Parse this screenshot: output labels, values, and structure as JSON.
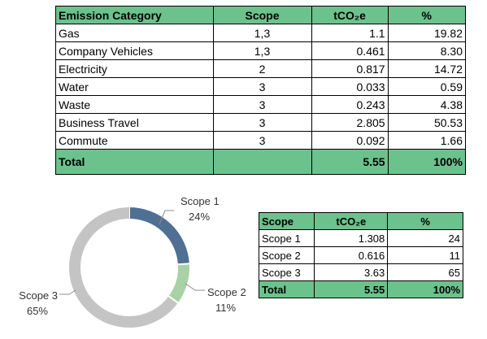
{
  "emissions_table": {
    "headers": [
      "Emission Category",
      "Scope",
      "tCO₂e",
      "%"
    ],
    "rows": [
      {
        "category": "Gas",
        "scope": "1,3",
        "tco2e": "1.1",
        "percent": "19.82"
      },
      {
        "category": "Company Vehicles",
        "scope": "1,3",
        "tco2e": "0.461",
        "percent": "8.30"
      },
      {
        "category": "Electricity",
        "scope": "2",
        "tco2e": "0.817",
        "percent": "14.72"
      },
      {
        "category": "Water",
        "scope": "3",
        "tco2e": "0.033",
        "percent": "0.59"
      },
      {
        "category": "Waste",
        "scope": "3",
        "tco2e": "0.243",
        "percent": "4.38"
      },
      {
        "category": "Business Travel",
        "scope": "3",
        "tco2e": "2.805",
        "percent": "50.53"
      },
      {
        "category": "Commute",
        "scope": "3",
        "tco2e": "0.092",
        "percent": "1.66"
      }
    ],
    "total": {
      "label": "Total",
      "scope": "",
      "tco2e": "5.55",
      "percent": "100%"
    }
  },
  "scope_table": {
    "headers": [
      "Scope",
      "tCO₂e",
      "%"
    ],
    "rows": [
      {
        "scope": "Scope 1",
        "tco2e": "1.308",
        "percent": "24"
      },
      {
        "scope": "Scope 2",
        "tco2e": "0.616",
        "percent": "11"
      },
      {
        "scope": "Scope 3",
        "tco2e": "3.63",
        "percent": "65"
      }
    ],
    "total": {
      "label": "Total",
      "tco2e": "5.55",
      "percent": "100%"
    }
  },
  "colors": {
    "header_green": "#6cc28c",
    "scope1": "#4f6f94",
    "scope2": "#a9d1a6",
    "scope3": "#c4c4c4"
  },
  "chart_data": {
    "type": "pie",
    "variant": "donut",
    "title": "",
    "slices": [
      {
        "label": "Scope 1",
        "value": 24,
        "value_label": "24%",
        "color": "#4f6f94"
      },
      {
        "label": "Scope 2",
        "value": 11,
        "value_label": "11%",
        "color": "#a9d1a6"
      },
      {
        "label": "Scope 3",
        "value": 65,
        "value_label": "65%",
        "color": "#c4c4c4"
      }
    ],
    "legend": "none"
  }
}
